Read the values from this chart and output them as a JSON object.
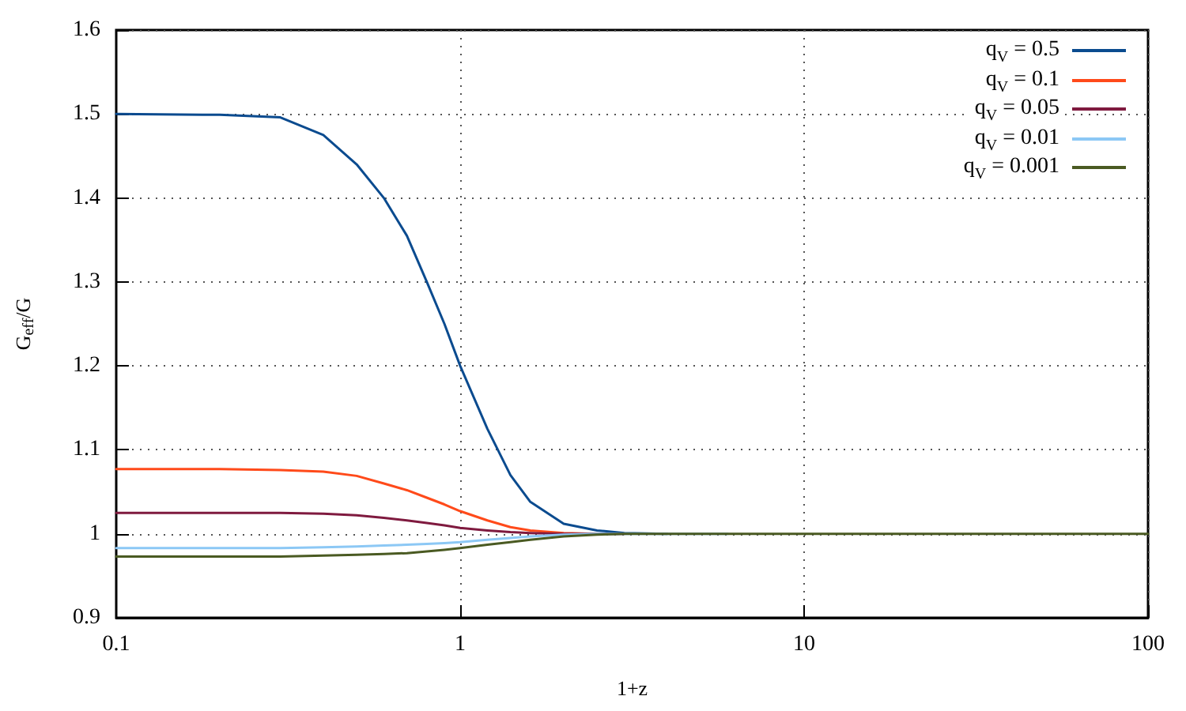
{
  "chart_data": {
    "type": "line",
    "xlabel": "1+z",
    "ylabel": "G$_{eff}$/G",
    "log": "x",
    "xlim": [
      0.1,
      100
    ],
    "xticks": [
      0.1,
      1,
      10,
      100
    ],
    "ylim": [
      0.9,
      1.6
    ],
    "yticks": [
      0.9,
      1,
      1.1,
      1.2,
      1.3,
      1.4,
      1.5,
      1.6
    ],
    "grid": true,
    "legend": "top right",
    "marker": "none",
    "line_style": "solid",
    "x": [
      0.1,
      0.2,
      0.3,
      0.4,
      0.5,
      0.6,
      0.7,
      0.8,
      0.9,
      1,
      1.2,
      1.4,
      1.6,
      2,
      2.5,
      3,
      4,
      6,
      10,
      30,
      100
    ],
    "series": [
      {
        "name": "q$_{V}$ = 0.5",
        "color": "#0b4b8f",
        "values": [
          1.5,
          1.499,
          1.496,
          1.475,
          1.44,
          1.4,
          1.355,
          1.3,
          1.25,
          1.2,
          1.125,
          1.07,
          1.038,
          1.012,
          1.004,
          1.001,
          1,
          null,
          null,
          null,
          null
        ]
      },
      {
        "name": "q$_{V}$ = 0.1",
        "color": "#ff4a1a",
        "values": [
          1.077,
          1.077,
          1.076,
          1.074,
          1.069,
          1.06,
          1.052,
          1.043,
          1.035,
          1.027,
          1.016,
          1.008,
          1.004,
          1.001,
          1,
          null,
          null,
          null,
          null,
          null,
          null
        ]
      },
      {
        "name": "q$_{V}$ = 0.05",
        "color": "#7f1a3f",
        "values": [
          1.025,
          1.025,
          1.025,
          1.024,
          1.022,
          1.019,
          1.016,
          1.013,
          1.01,
          1.007,
          1.004,
          1.002,
          1.001,
          1,
          1,
          1,
          null,
          null,
          null,
          null,
          null
        ]
      },
      {
        "name": "q$_{V}$ = 0.01",
        "color": "#8cc8f5",
        "values": [
          0.983,
          0.983,
          0.983,
          0.984,
          0.985,
          0.986,
          0.987,
          0.988,
          0.989,
          0.99,
          0.993,
          0.995,
          0.997,
          0.999,
          1,
          1,
          1,
          1,
          null,
          null,
          null
        ]
      },
      {
        "name": "q$_{V}$ = 0.001",
        "color": "#4a5a22",
        "values": [
          0.973,
          0.973,
          0.973,
          0.974,
          0.975,
          0.976,
          0.977,
          0.979,
          0.981,
          0.983,
          0.987,
          0.99,
          0.993,
          0.997,
          0.999,
          1,
          1,
          1,
          1,
          1,
          1
        ]
      }
    ]
  }
}
